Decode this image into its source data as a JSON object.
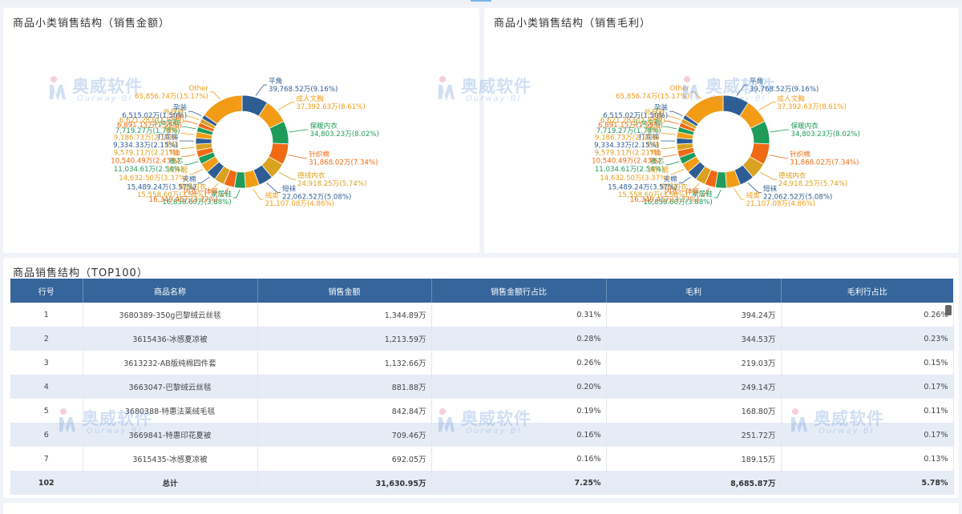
{
  "charts": {
    "left": {
      "title": "商品小类销售结构（销售金额）"
    },
    "right": {
      "title": "商品小类销售结构（销售毛利）"
    }
  },
  "chart_data": [
    {
      "type": "pie",
      "title": "商品小类销售结构（销售金额）",
      "donut": true,
      "slices": [
        {
          "name": "平角",
          "label": "39,768.52万(9.16%)",
          "percent": 9.16,
          "color": "#2e5d94"
        },
        {
          "name": "成人文胸",
          "label": "37,392.63万(8.61%)",
          "percent": 8.61,
          "color": "#f29c16"
        },
        {
          "name": "保暖内衣",
          "label": "34,803.23万(8.02%)",
          "percent": 8.02,
          "color": "#1f9b5a"
        },
        {
          "name": "针织棉",
          "label": "31,868.02万(7.34%)",
          "percent": 7.34,
          "color": "#ef6a12"
        },
        {
          "name": "德绒内衣",
          "label": "24,918.25万(5.74%)",
          "percent": 5.74,
          "color": "#d9a21f"
        },
        {
          "name": "短袜",
          "label": "22,062.52万(5.08%)",
          "percent": 5.08,
          "color": "#2e5d94"
        },
        {
          "name": "绒类",
          "label": "21,107.08万(4.86%)",
          "percent": 4.86,
          "color": "#f29c16"
        },
        {
          "name": "家居鞋",
          "label": "16,838.60万(3.88%)",
          "percent": 3.88,
          "color": "#1f9b5a"
        },
        {
          "name": "内衣一体裤",
          "label": "16,349.45万(3.77%)",
          "percent": 3.77,
          "color": "#ef6a12"
        },
        {
          "name": "常规内衣",
          "label": "15,558.60万(3.58%)",
          "percent": 3.58,
          "color": "#d9a21f"
        },
        {
          "name": "夹棉",
          "label": "15,489.24万(3.57%)",
          "percent": 3.57,
          "color": "#2e5d94"
        },
        {
          "name": "四件套",
          "label": "14,632.50万(3.37%)",
          "percent": 3.37,
          "color": "#f29c16"
        },
        {
          "name": "被芯",
          "label": "11,034.61万(2.54%)",
          "percent": 2.54,
          "color": "#1f9b5a"
        },
        {
          "name": "T恤",
          "label": "10,540.49万(2.43%)",
          "percent": 2.43,
          "color": "#ef6a12"
        },
        {
          "name": "毛毯",
          "label": "9,579.11万(2.21%)",
          "percent": 2.21,
          "color": "#d9a21f"
        },
        {
          "name": "打底裤",
          "label": "9,334.33万(2.15%)",
          "percent": 2.15,
          "color": "#2e5d94"
        },
        {
          "name": "短裤",
          "label": "9,186.73万(2.12%)",
          "percent": 2.12,
          "color": "#f29c16"
        },
        {
          "name": "少女文胸",
          "label": "7,719.27万(1.78%)",
          "percent": 1.78,
          "color": "#1f9b5a"
        },
        {
          "name": "三角",
          "label": "6,891.15万(1.59%)",
          "percent": 1.59,
          "color": "#ef6a12"
        },
        {
          "name": "外穿鞋",
          "label": "6,621.28万(1.53%)",
          "percent": 1.53,
          "color": "#d9a21f"
        },
        {
          "name": "孕装",
          "label": "6,515.02万(1.50%)",
          "percent": 1.5,
          "color": "#2e5d94"
        },
        {
          "name": "Other",
          "label": "65,856.74万(15.17%)",
          "percent": 15.17,
          "color": "#f29c16"
        }
      ]
    },
    {
      "type": "pie",
      "title": "商品小类销售结构（销售毛利）",
      "donut": true,
      "slices": [
        {
          "name": "平角",
          "label": "39,768.52万(9.16%)",
          "percent": 9.16,
          "color": "#2e5d94"
        },
        {
          "name": "成人文胸",
          "label": "37,392.63万(8.61%)",
          "percent": 8.61,
          "color": "#f29c16"
        },
        {
          "name": "保暖内衣",
          "label": "34,803.23万(8.02%)",
          "percent": 8.02,
          "color": "#1f9b5a"
        },
        {
          "name": "针织棉",
          "label": "31,868.02万(7.34%)",
          "percent": 7.34,
          "color": "#ef6a12"
        },
        {
          "name": "德绒内衣",
          "label": "24,918.25万(5.74%)",
          "percent": 5.74,
          "color": "#d9a21f"
        },
        {
          "name": "短袜",
          "label": "22,062.52万(5.08%)",
          "percent": 5.08,
          "color": "#2e5d94"
        },
        {
          "name": "绒类",
          "label": "21,107.08万(4.86%)",
          "percent": 4.86,
          "color": "#f29c16"
        },
        {
          "name": "家居鞋",
          "label": "16,838.60万(3.88%)",
          "percent": 3.88,
          "color": "#1f9b5a"
        },
        {
          "name": "内衣一体裤",
          "label": "16,349.45万(3.77%)",
          "percent": 3.77,
          "color": "#ef6a12"
        },
        {
          "name": "常规内衣",
          "label": "15,558.60万(3.58%)",
          "percent": 3.58,
          "color": "#d9a21f"
        },
        {
          "name": "夹棉",
          "label": "15,489.24万(3.57%)",
          "percent": 3.57,
          "color": "#2e5d94"
        },
        {
          "name": "四件套",
          "label": "14,632.50万(3.37%)",
          "percent": 3.37,
          "color": "#f29c16"
        },
        {
          "name": "被芯",
          "label": "11,034.61万(2.54%)",
          "percent": 2.54,
          "color": "#1f9b5a"
        },
        {
          "name": "T恤",
          "label": "10,540.49万(2.43%)",
          "percent": 2.43,
          "color": "#ef6a12"
        },
        {
          "name": "毛毯",
          "label": "9,579.11万(2.21%)",
          "percent": 2.21,
          "color": "#d9a21f"
        },
        {
          "name": "打底裤",
          "label": "9,334.33万(2.15%)",
          "percent": 2.15,
          "color": "#2e5d94"
        },
        {
          "name": "短裤",
          "label": "9,186.73万(2.12%)",
          "percent": 2.12,
          "color": "#f29c16"
        },
        {
          "name": "少女文胸",
          "label": "7,719.27万(1.78%)",
          "percent": 1.78,
          "color": "#1f9b5a"
        },
        {
          "name": "三角",
          "label": "6,891.15万(1.59%)",
          "percent": 1.59,
          "color": "#ef6a12"
        },
        {
          "name": "外穿鞋",
          "label": "6,621.28万(1.53%)",
          "percent": 1.53,
          "color": "#d9a21f"
        },
        {
          "name": "孕装",
          "label": "6,515.02万(1.50%)",
          "percent": 1.5,
          "color": "#2e5d94"
        },
        {
          "name": "Other",
          "label": "65,856.74万(15.17%)",
          "percent": 15.17,
          "color": "#f29c16"
        }
      ]
    },
    {
      "type": "table",
      "title": "商品销售结构（TOP100）",
      "columns": [
        "行号",
        "商品名称",
        "销售金额",
        "销售金额行占比",
        "毛利",
        "毛利行占比"
      ],
      "rows": [
        [
          "1",
          "3680389-350g巴黎绒云丝毯",
          "1,344.89万",
          "0.31%",
          "394.24万",
          "0.26%"
        ],
        [
          "2",
          "3615436-冰感夏凉被",
          "1,213.59万",
          "0.28%",
          "344.53万",
          "0.23%"
        ],
        [
          "3",
          "3613232-AB版纯棉四件套",
          "1,132.66万",
          "0.26%",
          "219.03万",
          "0.15%"
        ],
        [
          "4",
          "3663047-巴黎绒云丝毯",
          "881.88万",
          "0.20%",
          "249.14万",
          "0.17%"
        ],
        [
          "5",
          "3680388-特惠法莱绒毛毯",
          "842.84万",
          "0.19%",
          "168.80万",
          "0.11%"
        ],
        [
          "6",
          "3669841-特惠印花夏被",
          "709.46万",
          "0.16%",
          "251.72万",
          "0.17%"
        ],
        [
          "7",
          "3615435-冰感夏凉被",
          "692.05万",
          "0.16%",
          "189.15万",
          "0.13%"
        ]
      ],
      "total": [
        "102",
        "总计",
        "31,630.95万",
        "7.25%",
        "8,685.87万",
        "5.78%"
      ]
    }
  ],
  "table": {
    "title": "商品销售结构（TOP100）"
  },
  "watermark": {
    "text": "奥威软件",
    "sub": "Ourway·BI"
  }
}
